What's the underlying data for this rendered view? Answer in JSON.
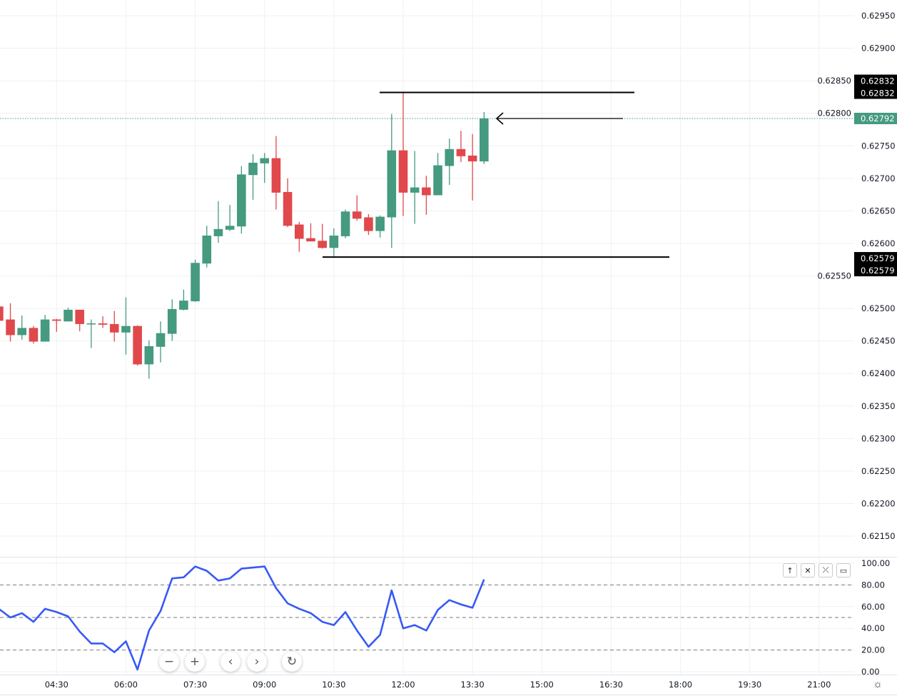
{
  "chart_data": {
    "type": "candlestick",
    "interval": "15m",
    "times": [
      "03:15",
      "03:30",
      "03:45",
      "04:00",
      "04:15",
      "04:30",
      "04:45",
      "05:00",
      "05:15",
      "05:30",
      "05:45",
      "06:00",
      "06:15",
      "06:30",
      "06:45",
      "07:00",
      "07:15",
      "07:30",
      "07:45",
      "08:00",
      "08:15",
      "08:30",
      "08:45",
      "09:00",
      "09:15",
      "09:30",
      "09:45",
      "10:00",
      "10:15",
      "10:30",
      "10:45",
      "11:00",
      "11:15",
      "11:30",
      "11:45",
      "12:00",
      "12:15",
      "12:30",
      "12:45",
      "13:00",
      "13:15",
      "13:30",
      "13:45"
    ],
    "ohlc": [
      [
        0.62503,
        0.62505,
        0.6248,
        0.62481
      ],
      [
        0.62483,
        0.62508,
        0.62449,
        0.62459
      ],
      [
        0.62459,
        0.62489,
        0.62452,
        0.6247
      ],
      [
        0.6247,
        0.62473,
        0.62446,
        0.62449
      ],
      [
        0.62449,
        0.6249,
        0.62449,
        0.62483
      ],
      [
        0.62483,
        0.62484,
        0.62464,
        0.62481
      ],
      [
        0.6248,
        0.62501,
        0.6248,
        0.62498
      ],
      [
        0.62498,
        0.62498,
        0.62465,
        0.62476
      ],
      [
        0.62477,
        0.62483,
        0.62439,
        0.62477
      ],
      [
        0.62477,
        0.62488,
        0.6247,
        0.62475
      ],
      [
        0.62476,
        0.62496,
        0.62449,
        0.62463
      ],
      [
        0.62463,
        0.62517,
        0.62429,
        0.62473
      ],
      [
        0.62473,
        0.62474,
        0.62412,
        0.62414
      ],
      [
        0.62414,
        0.62451,
        0.62392,
        0.62442
      ],
      [
        0.62441,
        0.6248,
        0.62417,
        0.62462
      ],
      [
        0.62461,
        0.62514,
        0.6245,
        0.62499
      ],
      [
        0.62498,
        0.62529,
        0.62497,
        0.62512
      ],
      [
        0.62511,
        0.62575,
        0.6251,
        0.6257
      ],
      [
        0.62569,
        0.62627,
        0.62563,
        0.62612
      ],
      [
        0.62611,
        0.62665,
        0.62601,
        0.62622
      ],
      [
        0.62621,
        0.62659,
        0.62619,
        0.62627
      ],
      [
        0.62626,
        0.62719,
        0.62615,
        0.62706
      ],
      [
        0.62705,
        0.62737,
        0.62667,
        0.62724
      ],
      [
        0.62723,
        0.62739,
        0.62693,
        0.62731
      ],
      [
        0.62731,
        0.62765,
        0.62652,
        0.62678
      ],
      [
        0.62679,
        0.627,
        0.62625,
        0.62627
      ],
      [
        0.62629,
        0.62633,
        0.62587,
        0.62607
      ],
      [
        0.62608,
        0.62631,
        0.62603,
        0.62603
      ],
      [
        0.62604,
        0.6263,
        0.62592,
        0.62593
      ],
      [
        0.62593,
        0.62623,
        0.62579,
        0.62612
      ],
      [
        0.62611,
        0.62652,
        0.62608,
        0.62649
      ],
      [
        0.62649,
        0.62674,
        0.62635,
        0.62638
      ],
      [
        0.6264,
        0.62645,
        0.62613,
        0.62619
      ],
      [
        0.62619,
        0.62643,
        0.62609,
        0.62641
      ],
      [
        0.6264,
        0.62799,
        0.62593,
        0.62743
      ],
      [
        0.62743,
        0.62832,
        0.62642,
        0.62678
      ],
      [
        0.62678,
        0.62742,
        0.6263,
        0.62686
      ],
      [
        0.62686,
        0.62704,
        0.62644,
        0.62674
      ],
      [
        0.62674,
        0.62739,
        0.62674,
        0.6272
      ],
      [
        0.62719,
        0.62761,
        0.6269,
        0.62745
      ],
      [
        0.62745,
        0.62773,
        0.62725,
        0.62734
      ],
      [
        0.62735,
        0.62768,
        0.62666,
        0.62726
      ],
      [
        0.62726,
        0.62802,
        0.62722,
        0.62792
      ]
    ],
    "y_ticks": [
      "0.62950",
      "0.62900",
      "0.62850",
      "0.62800",
      "0.62750",
      "0.62700",
      "0.62650",
      "0.62600",
      "0.62550",
      "0.62500",
      "0.62450",
      "0.62400",
      "0.62350",
      "0.62300",
      "0.62250",
      "0.62200",
      "0.62150"
    ],
    "y_range": [
      0.6215,
      0.6295
    ],
    "x_ticks": [
      "04:30",
      "06:00",
      "07:30",
      "09:00",
      "10:30",
      "12:00",
      "13:30",
      "15:00",
      "16:30",
      "18:00",
      "19:30",
      "21:00"
    ],
    "last_price": "0.62792",
    "horizontal_lines": [
      {
        "level": 0.62832,
        "labels": [
          "0.62832",
          "0.62832"
        ]
      },
      {
        "level": 0.62579,
        "labels": [
          "0.62579",
          "0.62579"
        ]
      }
    ],
    "arrow_level": 0.62792,
    "colors": {
      "up": "#459a80",
      "down": "#e0484c",
      "indicator": "#3859f5",
      "last_price": "#459a80",
      "line": "#000000"
    },
    "grid": true,
    "indicator": {
      "range": [
        0,
        100
      ],
      "ticks": [
        "100.00",
        "80.00",
        "60.00",
        "40.00",
        "20.00",
        "0.00"
      ],
      "bands": [
        80,
        50,
        20
      ],
      "values": [
        58,
        50,
        54,
        46,
        58,
        55,
        51,
        37,
        26,
        26,
        18,
        28,
        2,
        38,
        56,
        86,
        87,
        97,
        93,
        84,
        86,
        95,
        96,
        97,
        77,
        63,
        58,
        54,
        46,
        43,
        55,
        38,
        23,
        34,
        75,
        40,
        43,
        38,
        57,
        66,
        62,
        59,
        85
      ]
    }
  },
  "controls": {
    "nav_buttons": [
      {
        "icon": "zoom-out-icon",
        "glyph": "−"
      },
      {
        "icon": "zoom-in-icon",
        "glyph": "+"
      },
      {
        "icon": "scroll-left-icon",
        "glyph": "‹"
      },
      {
        "icon": "scroll-right-icon",
        "glyph": "›"
      },
      {
        "icon": "reset-icon",
        "glyph": "↻"
      }
    ],
    "pane_buttons": [
      {
        "icon": "move-up-icon",
        "glyph": "↑"
      },
      {
        "icon": "close-icon",
        "glyph": "✕"
      },
      {
        "icon": "collapse-icon",
        "glyph": "⤫"
      },
      {
        "icon": "maximize-icon",
        "glyph": "▭"
      }
    ],
    "settings_icon": "gear-icon"
  }
}
